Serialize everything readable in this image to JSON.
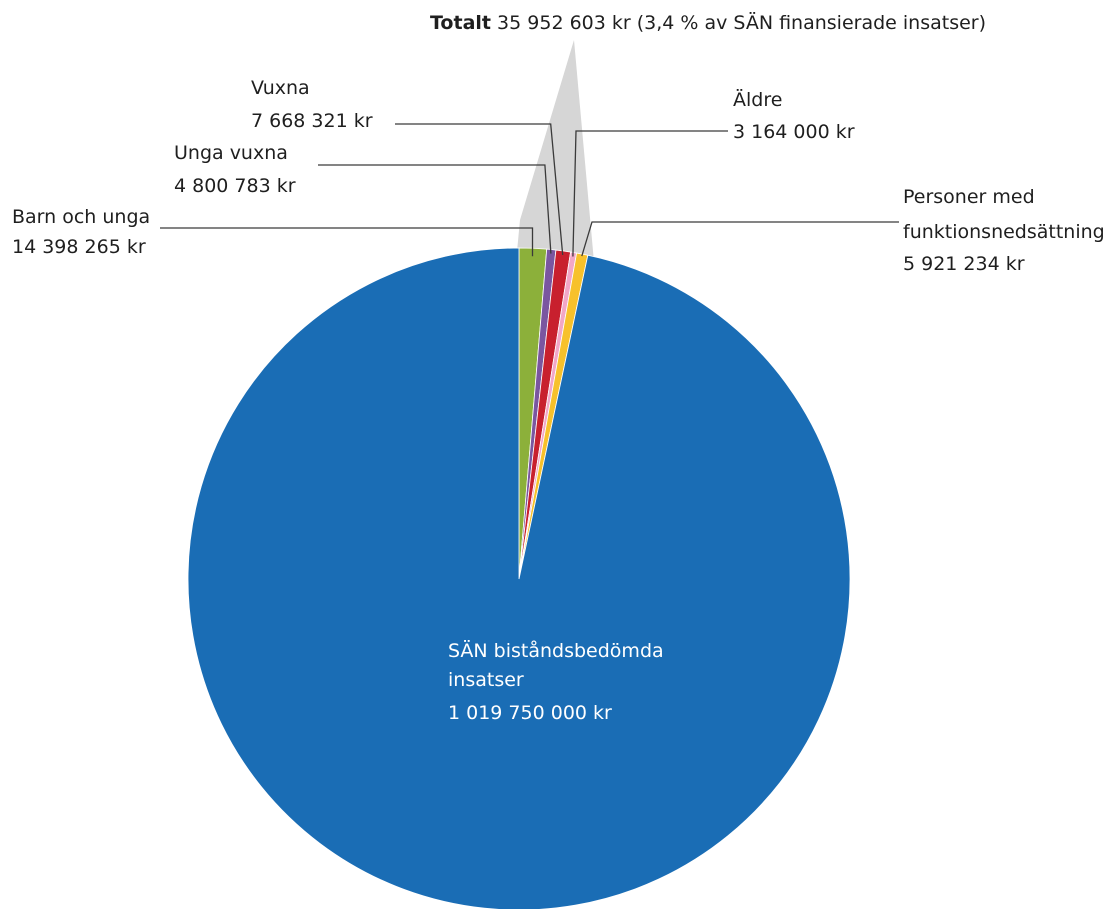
{
  "chart_data": {
    "type": "pie",
    "title": "",
    "total": {
      "label_bold": "Totalt",
      "label_rest": "35 952 603 kr (3,4 % av SÄN finansierade insatser)",
      "value": 35952603,
      "percent": 3.4,
      "highlight_color": "#d6d6d6"
    },
    "slices": [
      {
        "key": "barn",
        "name": "Barn och unga",
        "value_label": "14 398 265 kr",
        "value": 14398265,
        "color": "#8cb03a"
      },
      {
        "key": "unga",
        "name": "Unga vuxna",
        "value_label": "4 800 783 kr",
        "value": 4800783,
        "color": "#7a56a0"
      },
      {
        "key": "vuxna",
        "name": "Vuxna",
        "value_label": "7 668 321 kr",
        "value": 7668321,
        "color": "#c8202e"
      },
      {
        "key": "aldre",
        "name": "Äldre",
        "value_label": "3 164 000 kr",
        "value": 3164000,
        "color": "#f2a7c7"
      },
      {
        "key": "funk",
        "name": "Personer med funktionsnedsättning",
        "name_lines": [
          "Personer med",
          "funktionsnedsättning"
        ],
        "value_label": "5 921 234 kr",
        "value": 5921234,
        "color": "#f7c12b"
      },
      {
        "key": "san",
        "name": "SÄN biståndsbedömda insatser",
        "name_lines": [
          "SÄN biståndsbedömda",
          "insatser"
        ],
        "value_label": "1 019 750 000 kr",
        "value": 1019750000,
        "color": "#1a6db5"
      }
    ]
  }
}
